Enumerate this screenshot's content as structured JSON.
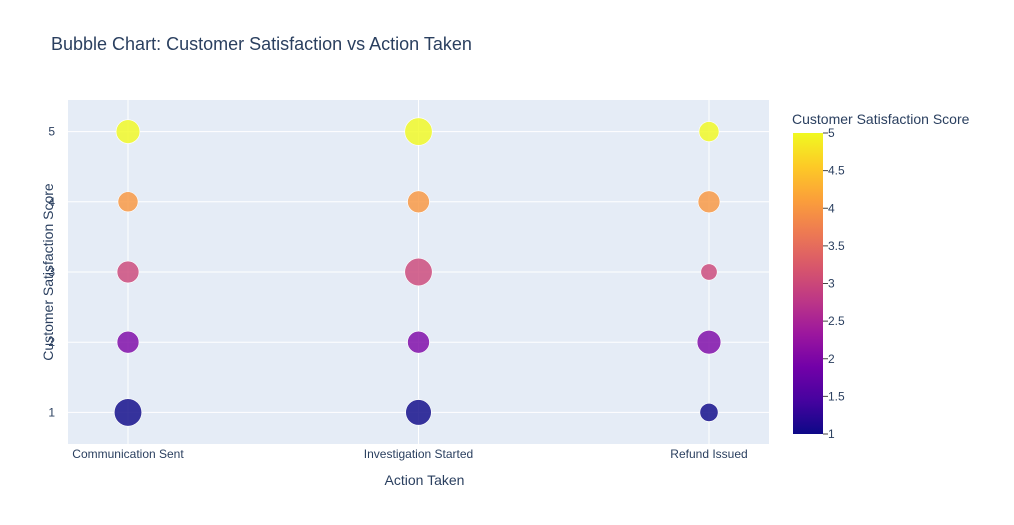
{
  "chart_data": {
    "type": "scatter",
    "title": "Bubble Chart: Customer Satisfaction vs Action Taken",
    "xlabel": "Action Taken",
    "ylabel": "Customer Satisfaction Score",
    "categories": [
      "Communication Sent",
      "Investigation Started",
      "Refund Issued"
    ],
    "ylim": [
      0.55,
      5.45
    ],
    "yticks": [
      "1",
      "2",
      "3",
      "4",
      "5"
    ],
    "grid": true,
    "points": [
      {
        "x": "Communication Sent",
        "y": 5,
        "size": 4
      },
      {
        "x": "Communication Sent",
        "y": 4,
        "size": 3
      },
      {
        "x": "Communication Sent",
        "y": 3,
        "size": 3.5
      },
      {
        "x": "Communication Sent",
        "y": 2,
        "size": 3.5
      },
      {
        "x": "Communication Sent",
        "y": 1,
        "size": 5
      },
      {
        "x": "Investigation Started",
        "y": 5,
        "size": 5
      },
      {
        "x": "Investigation Started",
        "y": 4,
        "size": 3.5
      },
      {
        "x": "Investigation Started",
        "y": 3,
        "size": 5
      },
      {
        "x": "Investigation Started",
        "y": 2,
        "size": 3.5
      },
      {
        "x": "Investigation Started",
        "y": 1,
        "size": 4.5
      },
      {
        "x": "Refund Issued",
        "y": 5,
        "size": 3
      },
      {
        "x": "Refund Issued",
        "y": 4,
        "size": 3.5
      },
      {
        "x": "Refund Issued",
        "y": 3,
        "size": 2
      },
      {
        "x": "Refund Issued",
        "y": 2,
        "size": 4
      },
      {
        "x": "Refund Issued",
        "y": 1,
        "size": 2.5
      }
    ],
    "colorbar": {
      "title": "Customer Satisfaction Score",
      "min": 1,
      "max": 5,
      "ticks": [
        "1",
        "1.5",
        "2",
        "2.5",
        "3",
        "3.5",
        "4",
        "4.5",
        "5"
      ],
      "colorscale": [
        "#0d0887",
        "#46039f",
        "#7201a8",
        "#9c179e",
        "#bd3786",
        "#d8576b",
        "#ed7953",
        "#fb9f3a",
        "#fdca26",
        "#f0f921"
      ]
    }
  }
}
